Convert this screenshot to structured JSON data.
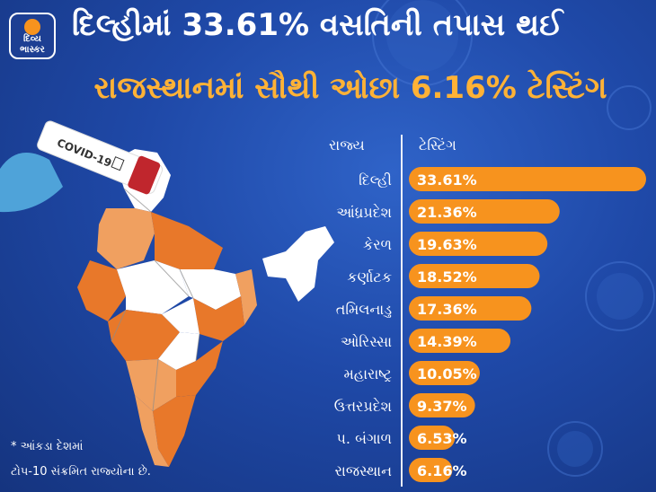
{
  "logo": {
    "line1": "દિવ્ય",
    "line2": "ભાસ્કર"
  },
  "header": {
    "title_line1": "દિલ્હીમાં 33.61% વસતિની તપાસ થઈ",
    "title_line2": "રાજસ્થાનમાં સૌથી ઓછા 6.16% ટેસ્ટિંગ"
  },
  "table_header": {
    "state": "રાજ્ય",
    "testing": "ટેસ્ટિંગ"
  },
  "tube_label": "COVID-19",
  "footnote": {
    "line1": "* આંકડા દેશમાં",
    "line2": "ટોપ-10 સંક્રમિત રાજ્યોના છે."
  },
  "colors": {
    "bar": "#f7931e",
    "title_highlight": "#ffb236",
    "map_dark": "#e8782a",
    "map_light": "#f0a060",
    "map_white": "#ffffff"
  },
  "chart_data": {
    "type": "bar",
    "orientation": "horizontal",
    "categories": [
      "દિલ્હી",
      "આંધ્રપ્રદેશ",
      "કેરળ",
      "કર્ણાટક",
      "તમિલનાડુ",
      "ઓરિસ્સા",
      "મહારાષ્ટ્ર",
      "ઉત્તરપ્રદેશ",
      "પ. બંગાળ",
      "રાજસ્થાન"
    ],
    "values": [
      33.61,
      21.36,
      19.63,
      18.52,
      17.36,
      14.39,
      10.05,
      9.37,
      6.53,
      6.16
    ],
    "value_labels": [
      "33.61%",
      "21.36%",
      "19.63%",
      "18.52%",
      "17.36%",
      "14.39%",
      "10.05%",
      "9.37%",
      "6.53%",
      "6.16%"
    ],
    "xlim": [
      0,
      33.61
    ],
    "grid": false,
    "title": "",
    "xlabel": "",
    "ylabel": ""
  }
}
